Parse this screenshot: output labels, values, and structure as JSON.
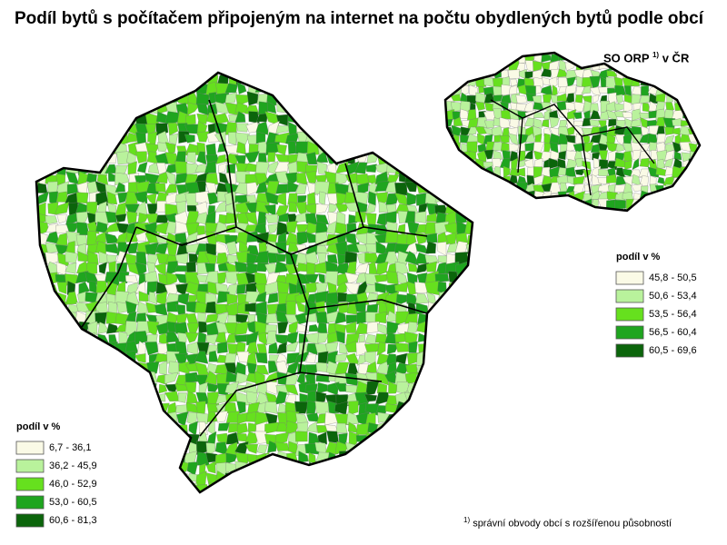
{
  "title": "Podíl bytů s počítačem připojeným na internet na počtu obydlených bytů podle obcí",
  "inset": {
    "label": "SO ORP",
    "superscript": "1)",
    "label_suffix": "v ČR"
  },
  "main_legend": {
    "title": "podíl v %",
    "items": [
      {
        "label": "6,7 - 36,1",
        "color": "#fafae6"
      },
      {
        "label": "36,2 - 45,9",
        "color": "#b9f29c"
      },
      {
        "label": "46,0 - 52,9",
        "color": "#66e01e"
      },
      {
        "label": "53,0 - 60,5",
        "color": "#1fa51f"
      },
      {
        "label": "60,6 - 81,3",
        "color": "#0b650b"
      }
    ]
  },
  "inset_legend": {
    "title": "podíl v %",
    "items": [
      {
        "label": "45,8 - 50,5",
        "color": "#fafae6"
      },
      {
        "label": "50,6 - 53,4",
        "color": "#b9f29c"
      },
      {
        "label": "53,5 - 56,4",
        "color": "#66e01e"
      },
      {
        "label": "56,5 - 60,4",
        "color": "#1fa51f"
      },
      {
        "label": "60,5 - 69,6",
        "color": "#0b650b"
      }
    ]
  },
  "footnote": {
    "marker": "1)",
    "text": "správní obvody obcí s rozšířenou působností"
  }
}
